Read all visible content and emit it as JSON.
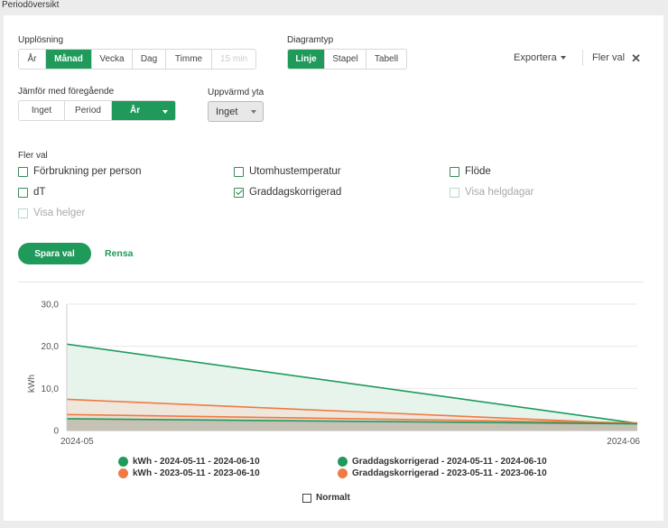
{
  "page_title": "Periodöversikt",
  "resolution": {
    "label": "Upplösning",
    "options": [
      "År",
      "Månad",
      "Vecka",
      "Dag",
      "Timme",
      "15 min"
    ],
    "selected": "Månad",
    "disabled": [
      "15 min"
    ]
  },
  "chart_type": {
    "label": "Diagramtyp",
    "options": [
      "Linje",
      "Stapel",
      "Tabell"
    ],
    "selected": "Linje"
  },
  "toolbar": {
    "export_label": "Exportera",
    "more_label": "Fler val"
  },
  "compare": {
    "label": "Jämför med föregående",
    "options": [
      "Inget",
      "Period",
      "År"
    ],
    "selected": "År"
  },
  "heated_area": {
    "label": "Uppvärmd yta",
    "value": "Inget"
  },
  "more_options": {
    "label": "Fler val",
    "items": [
      {
        "label": "Förbrukning per person",
        "checked": false,
        "disabled": false
      },
      {
        "label": "Utomhustemperatur",
        "checked": false,
        "disabled": false
      },
      {
        "label": "Flöde",
        "checked": false,
        "disabled": false
      },
      {
        "label": "dT",
        "checked": false,
        "disabled": false
      },
      {
        "label": "Graddagskorrigerad",
        "checked": true,
        "disabled": false
      },
      {
        "label": "Visa helgdagar",
        "checked": false,
        "disabled": true
      },
      {
        "label": "Visa helger",
        "checked": false,
        "disabled": true
      }
    ]
  },
  "actions": {
    "save_label": "Spara val",
    "clear_label": "Rensa"
  },
  "colors": {
    "accent": "#1f9a5b",
    "green_series": "#1f9a5b",
    "orange_series": "#f07a45"
  },
  "chart_data": {
    "type": "area",
    "x": [
      "2024-05",
      "2024-06"
    ],
    "ylabel": "kWh",
    "ylim": [
      0,
      30
    ],
    "yticks": [
      "0",
      "10,0",
      "20,0",
      "30,0"
    ],
    "grid": true,
    "legend_position": "bottom",
    "series": [
      {
        "name": "kWh - 2024-05-11 - 2024-06-10",
        "values": [
          2.8,
          1.6
        ],
        "color": "#1f9a5b"
      },
      {
        "name": "kWh - 2023-05-11 - 2023-06-10",
        "values": [
          3.8,
          1.8
        ],
        "color": "#f07a45"
      },
      {
        "name": "Graddagskorrigerad - 2024-05-11 - 2024-06-10",
        "values": [
          20.5,
          1.7
        ],
        "color": "#1f9a5b"
      },
      {
        "name": "Graddagskorrigerad - 2023-05-11 - 2023-06-10",
        "values": [
          7.4,
          1.6
        ],
        "color": "#f07a45"
      }
    ]
  },
  "normal": {
    "label": "Normalt",
    "checked": false
  }
}
